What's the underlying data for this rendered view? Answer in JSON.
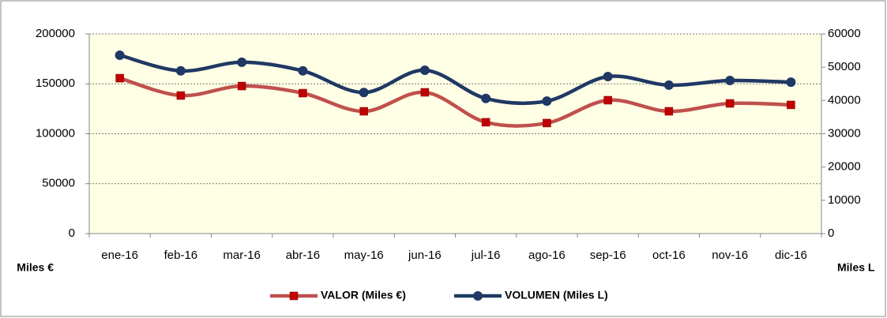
{
  "chart_data": {
    "type": "line",
    "categories": [
      "ene-16",
      "feb-16",
      "mar-16",
      "abr-16",
      "may-16",
      "jun-16",
      "jul-16",
      "ago-16",
      "sep-16",
      "oct-16",
      "nov-16",
      "dic-16"
    ],
    "series": [
      {
        "name": "VALOR (Miles €)",
        "color": "#c0504d",
        "marker_color": "#c00000",
        "marker": "square",
        "values": [
          155700,
          138300,
          147800,
          140700,
          122500,
          141500,
          111500,
          110700,
          133600,
          122500,
          130400,
          128900
        ]
      },
      {
        "name": "VOLUMEN (Miles L)",
        "color": "#1f3864",
        "marker_color": "#1f3864",
        "marker": "circle",
        "axis": "y2",
        "values": [
          53600,
          48900,
          51500,
          48900,
          42400,
          49100,
          40600,
          39800,
          47200,
          44600,
          46000,
          45500
        ]
      }
    ],
    "ylabel": "Miles €",
    "y2label": "Miles L",
    "ylim": [
      0,
      200000
    ],
    "yticks": [
      0,
      50000,
      100000,
      150000,
      200000
    ],
    "y2lim": [
      0,
      60000
    ],
    "y2ticks": [
      0,
      10000,
      20000,
      30000,
      40000,
      50000,
      60000
    ],
    "grid": true,
    "smooth": true,
    "legend": "bottom",
    "plot_background": "#ffffe5"
  }
}
